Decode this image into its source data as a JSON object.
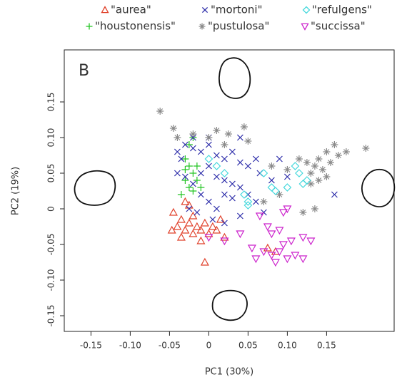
{
  "chart_data": {
    "type": "scatter",
    "panel_label": "B",
    "xlabel": "PC1 (30%)",
    "ylabel": "PC2 (19%)",
    "xlim": [
      -0.184,
      0.236
    ],
    "ylim": [
      -0.172,
      0.223
    ],
    "xticks": [
      -0.15,
      {
        "value": -0.1,
        "label": "-0.10"
      },
      -0.05,
      0,
      0.05,
      {
        "value": 0.1,
        "label": "0.10"
      },
      0.15
    ],
    "yticks": [
      -0.15,
      {
        "value": -0.1,
        "label": "-0.10"
      },
      -0.05,
      0,
      0.05,
      {
        "value": 0.1,
        "label": "0.10"
      },
      0.15
    ],
    "series": [
      {
        "name": "\"aurea\"",
        "color": "#e0402a",
        "marker": "triangle",
        "x": [
          -0.045,
          -0.04,
          -0.047,
          -0.035,
          -0.03,
          -0.025,
          -0.02,
          -0.015,
          -0.01,
          -0.02,
          -0.005,
          0,
          0.005,
          0.01,
          -0.03,
          -0.025,
          0.015,
          0.02,
          -0.005,
          0.075,
          0.085,
          -0.035,
          -0.01
        ],
        "y": [
          -0.005,
          -0.025,
          -0.03,
          -0.015,
          -0.03,
          -0.02,
          -0.035,
          -0.025,
          -0.03,
          -0.01,
          -0.02,
          -0.035,
          -0.025,
          -0.03,
          0.01,
          0.005,
          -0.015,
          -0.04,
          -0.075,
          -0.055,
          -0.06,
          -0.04,
          -0.045
        ]
      },
      {
        "name": "\"houstonensis\"",
        "color": "#22c422",
        "marker": "plus",
        "x": [
          -0.02,
          -0.025,
          -0.03,
          -0.025,
          -0.02,
          -0.03,
          -0.015,
          -0.025,
          -0.035,
          -0.01,
          -0.02,
          -0.03,
          -0.015
        ],
        "y": [
          0.1,
          0.09,
          0.07,
          0.06,
          0.05,
          0.04,
          0.04,
          0.03,
          0.02,
          0.03,
          0.025,
          0.055,
          0.06
        ]
      },
      {
        "name": "\"mortoni\"",
        "color": "#2a2aa8",
        "marker": "cross",
        "x": [
          -0.04,
          -0.035,
          -0.03,
          -0.02,
          -0.01,
          0,
          0.01,
          0.02,
          0.03,
          0.04,
          0.05,
          0.06,
          -0.04,
          -0.03,
          -0.02,
          -0.01,
          0,
          0.01,
          0.02,
          0.03,
          0.04,
          -0.01,
          0,
          0.01,
          0.02,
          0.03,
          0.04,
          0.05,
          0.06,
          0.07,
          -0.025,
          -0.015,
          0.005,
          0.02,
          0.1,
          0.09,
          0.08,
          0.16,
          0.04,
          0,
          -0.02,
          0.065
        ],
        "y": [
          0.08,
          0.07,
          0.09,
          0.085,
          0.08,
          0.09,
          0.075,
          0.07,
          0.08,
          0.065,
          0.06,
          0.07,
          0.05,
          0.045,
          0.035,
          0.05,
          0.06,
          0.045,
          0.04,
          0.035,
          0.03,
          0.02,
          0.01,
          0,
          0.02,
          0.015,
          -0.01,
          0.02,
          0.01,
          -0.005,
          0,
          -0.005,
          -0.015,
          -0.02,
          0.045,
          0.07,
          0.04,
          0.02,
          0.1,
          0.1,
          0.1,
          0.05
        ]
      },
      {
        "name": "\"pustulosa\"",
        "color": "#8a8a8a",
        "marker": "asterisk",
        "x": [
          -0.062,
          -0.045,
          -0.04,
          -0.02,
          0,
          0.01,
          0.025,
          0.045,
          0.02,
          0.05,
          0.08,
          0.1,
          0.115,
          0.125,
          0.13,
          0.135,
          0.14,
          0.145,
          0.15,
          0.155,
          0.16,
          0.165,
          0.175,
          0.2,
          0.14,
          0.15,
          0.13,
          0.07,
          0.12,
          0.135,
          0.09
        ],
        "y": [
          0.137,
          0.113,
          0.1,
          0.105,
          0.1,
          0.11,
          0.105,
          0.115,
          0.09,
          0.095,
          0.06,
          0.055,
          0.07,
          0.065,
          0.05,
          0.06,
          0.07,
          0.055,
          0.08,
          0.065,
          0.09,
          0.075,
          0.08,
          0.085,
          0.04,
          0.045,
          0.035,
          0.01,
          -0.005,
          0,
          0.02
        ]
      },
      {
        "name": "\"refulgens\"",
        "color": "#44d8dc",
        "marker": "diamond",
        "x": [
          0,
          0.01,
          0.02,
          0.045,
          0.05,
          0.07,
          0.08,
          0.085,
          0.1,
          0.11,
          0.115,
          0.12,
          0.125,
          0.05
        ],
        "y": [
          0.07,
          0.06,
          0.05,
          0.02,
          0.01,
          0.05,
          0.03,
          0.025,
          0.03,
          0.06,
          0.05,
          0.035,
          0.04,
          0.005
        ]
      },
      {
        "name": "\"succissa\"",
        "color": "#cc22cc",
        "marker": "triangle-down",
        "x": [
          0.065,
          0.075,
          0.08,
          0.095,
          0.1,
          0.09,
          0.105,
          0.12,
          0.13,
          0.055,
          0.07,
          0.08,
          0.09,
          0.1,
          0.11,
          0.12,
          0.06,
          0.085,
          0.095,
          0.02,
          0,
          0.04
        ],
        "y": [
          -0.01,
          -0.025,
          -0.035,
          -0.005,
          0,
          -0.03,
          -0.045,
          -0.04,
          -0.045,
          -0.055,
          -0.06,
          -0.065,
          -0.06,
          -0.07,
          -0.065,
          -0.07,
          -0.07,
          -0.075,
          -0.05,
          -0.045,
          -0.04,
          -0.035
        ]
      }
    ]
  }
}
